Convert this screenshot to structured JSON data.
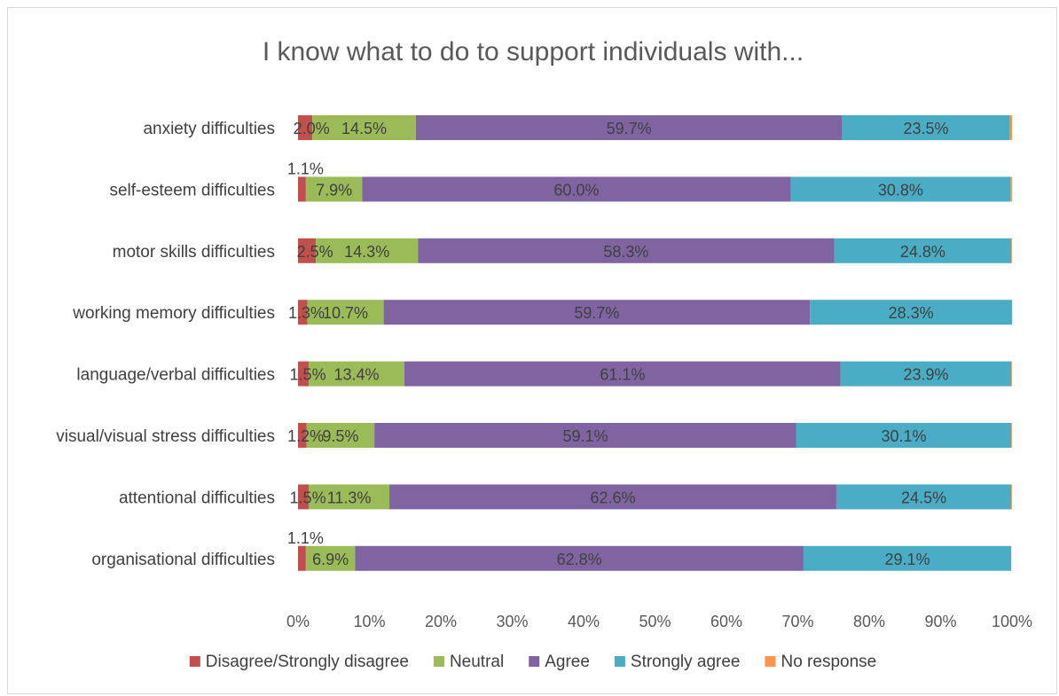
{
  "chart_data": {
    "type": "bar",
    "orientation": "horizontal",
    "stacked": "percent",
    "title": "I know what to do to support individuals with...",
    "categories": [
      "anxiety difficulties",
      "self-esteem difficulties",
      "motor skills difficulties",
      "working memory difficulties",
      "language/verbal difficulties",
      "visual/visual stress difficulties",
      "attentional difficulties",
      "organisational difficulties"
    ],
    "series": [
      {
        "name": "Disagree/Strongly disagree",
        "color": "#c0504d",
        "values": [
          2.0,
          1.1,
          2.5,
          1.3,
          1.5,
          1.2,
          1.5,
          1.1
        ],
        "labels": [
          "2.0%",
          "1.1%",
          "2.5%",
          "1.3%",
          "1.5%",
          "1.2%",
          "1.5%",
          "1.1%"
        ]
      },
      {
        "name": "Neutral",
        "color": "#9bbb59",
        "values": [
          14.5,
          7.9,
          14.3,
          10.7,
          13.4,
          9.5,
          11.3,
          6.9
        ],
        "labels": [
          "14.5%",
          "7.9%",
          "14.3%",
          "10.7%",
          "13.4%",
          "9.5%",
          "11.3%",
          "6.9%"
        ]
      },
      {
        "name": "Agree",
        "color": "#8064a2",
        "values": [
          59.7,
          60.0,
          58.3,
          59.7,
          61.1,
          59.1,
          62.6,
          62.8
        ],
        "labels": [
          "59.7%",
          "60.0%",
          "58.3%",
          "59.7%",
          "61.1%",
          "59.1%",
          "62.6%",
          "62.8%"
        ]
      },
      {
        "name": "Strongly agree",
        "color": "#4bacc6",
        "values": [
          23.5,
          30.8,
          24.8,
          28.3,
          23.9,
          30.1,
          24.5,
          29.1
        ],
        "labels": [
          "23.5%",
          "30.8%",
          "24.8%",
          "28.3%",
          "23.9%",
          "30.1%",
          "24.5%",
          "29.1%"
        ]
      },
      {
        "name": "No response",
        "color": "#f79646",
        "values": [
          0.3,
          0.2,
          0.1,
          0.0,
          0.1,
          0.1,
          0.1,
          0.0
        ],
        "labels": [
          "",
          "",
          "",
          "",
          "",
          "",
          "",
          ""
        ]
      }
    ],
    "x_ticks": [
      "0%",
      "10%",
      "20%",
      "30%",
      "40%",
      "50%",
      "60%",
      "70%",
      "80%",
      "90%",
      "100%"
    ],
    "xlim": [
      0,
      100
    ],
    "grid": false,
    "legend": "bottom"
  }
}
